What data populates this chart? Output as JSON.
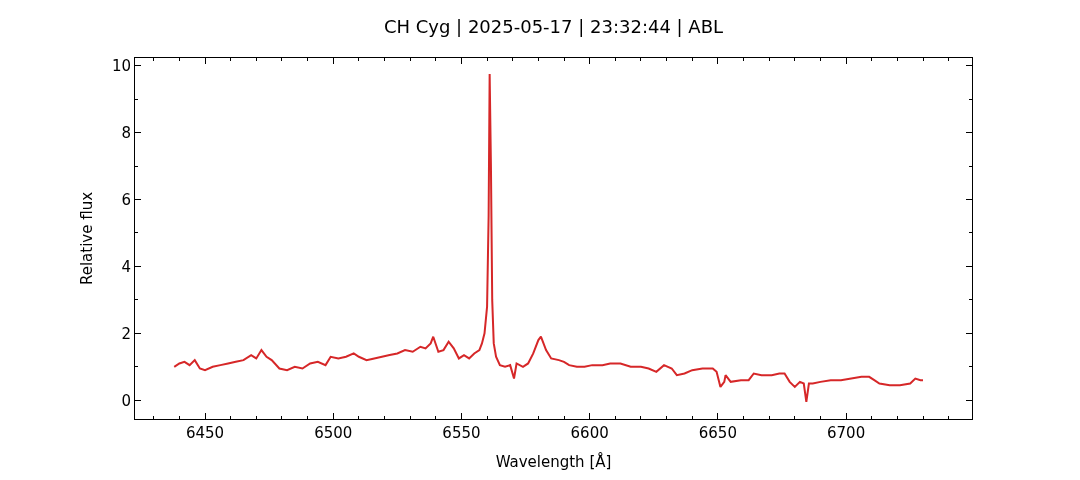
{
  "chart_data": {
    "type": "line",
    "title": "CH Cyg | 2025-05-17 | 23:32:44 | ABL",
    "xlabel": "Wavelength [Å]",
    "ylabel": "Relative flux",
    "color": "#d62728",
    "marker": "none",
    "line_style": "solid",
    "xlim": [
      6422.7,
      6749.1
    ],
    "ylim": [
      -0.56,
      10.23
    ],
    "xticks": [
      {
        "value": 6430,
        "label": null
      },
      {
        "value": 6440,
        "label": null
      },
      6450,
      {
        "value": 6460,
        "label": null
      },
      {
        "value": 6470,
        "label": null
      },
      {
        "value": 6480,
        "label": null
      },
      {
        "value": 6490,
        "label": null
      },
      6500,
      {
        "value": 6510,
        "label": null
      },
      {
        "value": 6520,
        "label": null
      },
      {
        "value": 6530,
        "label": null
      },
      {
        "value": 6540,
        "label": null
      },
      6550,
      {
        "value": 6560,
        "label": null
      },
      {
        "value": 6570,
        "label": null
      },
      {
        "value": 6580,
        "label": null
      },
      {
        "value": 6590,
        "label": null
      },
      6600,
      {
        "value": 6610,
        "label": null
      },
      {
        "value": 6620,
        "label": null
      },
      {
        "value": 6630,
        "label": null
      },
      {
        "value": 6640,
        "label": null
      },
      6650,
      {
        "value": 6660,
        "label": null
      },
      {
        "value": 6670,
        "label": null
      },
      {
        "value": 6680,
        "label": null
      },
      {
        "value": 6690,
        "label": null
      },
      6700,
      {
        "value": 6710,
        "label": null
      },
      {
        "value": 6720,
        "label": null
      },
      {
        "value": 6730,
        "label": null
      },
      {
        "value": 6740,
        "label": null
      }
    ],
    "yticks": [
      0,
      {
        "value": 1,
        "label": null
      },
      2,
      {
        "value": 3,
        "label": null
      },
      4,
      {
        "value": 5,
        "label": null
      },
      6,
      {
        "value": 7,
        "label": null
      },
      8,
      {
        "value": 9,
        "label": null
      },
      10
    ],
    "x": [
      6438,
      6440,
      6442,
      6444,
      6446,
      6448,
      6450,
      6453,
      6456,
      6459,
      6462,
      6465,
      6468,
      6470,
      6472,
      6474,
      6476,
      6479,
      6482,
      6485,
      6488,
      6491,
      6494,
      6497,
      6499,
      6502,
      6505,
      6508,
      6510,
      6513,
      6516,
      6519,
      6522,
      6525,
      6528,
      6531,
      6534,
      6536,
      6538,
      6539,
      6541,
      6543,
      6545,
      6547,
      6549,
      6551,
      6553,
      6555,
      6557,
      6558,
      6559,
      6560,
      6560.6,
      6561,
      6561.5,
      6562,
      6562.6,
      6563.5,
      6565,
      6567,
      6569,
      6570.5,
      6571.5,
      6574,
      6576,
      6578,
      6580,
      6581,
      6583,
      6585,
      6588,
      6590,
      6592,
      6595,
      6598,
      6601,
      6605,
      6608,
      6612,
      6616,
      6620,
      6623,
      6626,
      6629,
      6632,
      6634,
      6637,
      6640,
      6644,
      6648,
      6649.5,
      6651,
      6652.5,
      6653,
      6655,
      6659,
      6662,
      6664,
      6667,
      6671,
      6674,
      6676,
      6678,
      6680,
      6682,
      6683.5,
      6684.5,
      6685.5,
      6687,
      6690,
      6694,
      6698,
      6702,
      6706,
      6709,
      6711,
      6713,
      6717,
      6721,
      6725,
      6727,
      6729,
      6730
    ],
    "values": [
      1.0,
      1.1,
      1.15,
      1.05,
      1.2,
      0.95,
      0.9,
      1.0,
      1.05,
      1.1,
      1.15,
      1.2,
      1.35,
      1.25,
      1.5,
      1.3,
      1.2,
      0.95,
      0.9,
      1.0,
      0.95,
      1.1,
      1.15,
      1.05,
      1.3,
      1.25,
      1.3,
      1.4,
      1.3,
      1.2,
      1.25,
      1.3,
      1.35,
      1.4,
      1.5,
      1.45,
      1.6,
      1.55,
      1.7,
      1.9,
      1.45,
      1.5,
      1.75,
      1.55,
      1.25,
      1.35,
      1.25,
      1.4,
      1.5,
      1.7,
      2.0,
      2.8,
      5.5,
      9.75,
      7.0,
      3.0,
      1.7,
      1.3,
      1.05,
      1.0,
      1.05,
      0.65,
      1.1,
      1.0,
      1.1,
      1.4,
      1.8,
      1.9,
      1.5,
      1.25,
      1.2,
      1.15,
      1.05,
      1.0,
      1.0,
      1.05,
      1.05,
      1.1,
      1.1,
      1.0,
      1.0,
      0.95,
      0.85,
      1.05,
      0.95,
      0.75,
      0.8,
      0.9,
      0.95,
      0.95,
      0.85,
      0.4,
      0.55,
      0.75,
      0.55,
      0.6,
      0.6,
      0.8,
      0.75,
      0.75,
      0.8,
      0.8,
      0.55,
      0.4,
      0.55,
      0.5,
      -0.05,
      0.5,
      0.5,
      0.55,
      0.6,
      0.6,
      0.65,
      0.7,
      0.7,
      0.6,
      0.5,
      0.45,
      0.45,
      0.5,
      0.65,
      0.6,
      0.6
    ]
  }
}
